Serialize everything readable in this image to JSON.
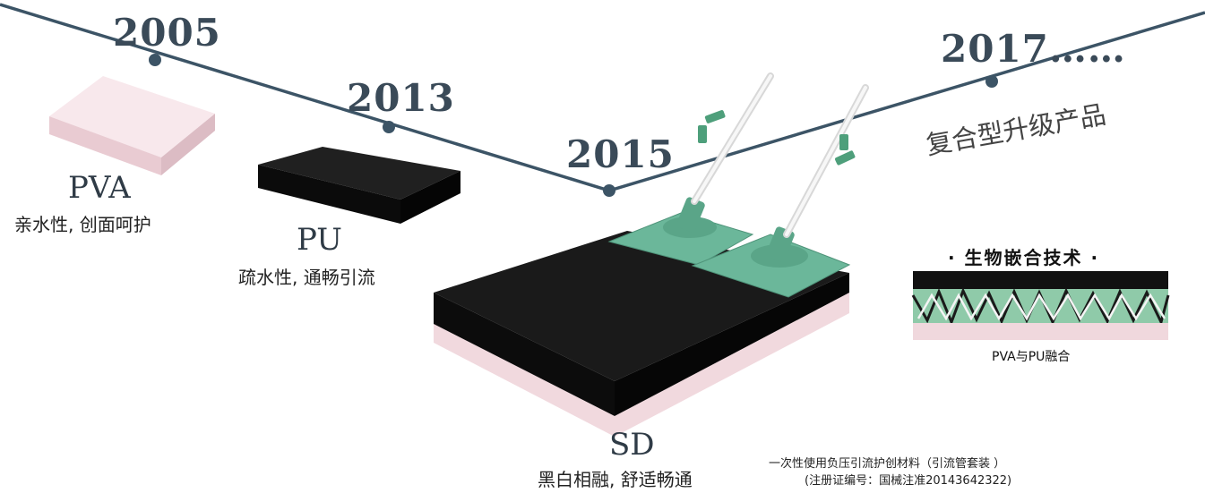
{
  "timeline": {
    "y2005": "2005",
    "y2013": "2013",
    "y2015": "2015",
    "y2017": "2017",
    "ellipsis": "……"
  },
  "materials": {
    "pva": {
      "name": "PVA",
      "desc": "亲水性, 创面呵护"
    },
    "pu": {
      "name": "PU",
      "desc": "疏水性, 通畅引流"
    },
    "sd": {
      "name": "SD",
      "desc": "黑白相融, 舒适畅通"
    }
  },
  "upgrade": "复合型升级产品",
  "tech": {
    "title": "· 生物嵌合技术 ·",
    "caption": "PVA与PU融合"
  },
  "footnote": {
    "line1": "一次性使用负压引流护创材料（引流管套装 ）",
    "line2": "(注册证编号：国械注准20143642322)"
  },
  "colors": {
    "timeline": "#3c5466",
    "pva": "#f6e4e8",
    "pu": "#141414",
    "sd_top": "#121212",
    "sd_base": "#f2dde2",
    "connector": "#5faa8c"
  }
}
